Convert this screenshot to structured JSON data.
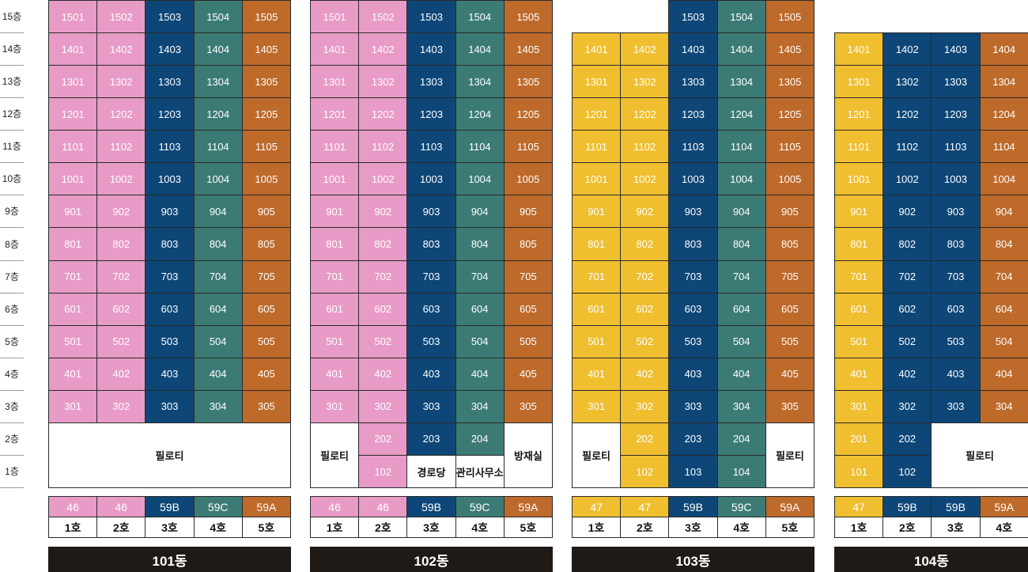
{
  "floors": [
    "15층",
    "14층",
    "13층",
    "12층",
    "11층",
    "10층",
    "9층",
    "8층",
    "7층",
    "6층",
    "5층",
    "4층",
    "3층",
    "2층",
    "1층"
  ],
  "colors": {
    "pink": "#e89bc6",
    "blue": "#0d4677",
    "teal": "#3c7b75",
    "orange": "#bd6a2b",
    "yellow": "#efbf2f",
    "dark": "#201a17"
  },
  "buildings": [
    {
      "name": "101동",
      "columns": [
        "pink",
        "pink",
        "blue",
        "teal",
        "orange"
      ],
      "top_floor": [
        15,
        15,
        15,
        15,
        15
      ],
      "ground": [
        {
          "type": "piloti",
          "label": "필로티",
          "col": 0,
          "span": 5,
          "floors": [
            2,
            1
          ]
        }
      ],
      "types": [
        "46",
        "46",
        "59B",
        "59C",
        "59A"
      ],
      "hos": [
        "1호",
        "2호",
        "3호",
        "4호",
        "5호"
      ]
    },
    {
      "name": "102동",
      "columns": [
        "pink",
        "pink",
        "blue",
        "teal",
        "orange"
      ],
      "top_floor": [
        15,
        15,
        15,
        15,
        15
      ],
      "ground": [
        {
          "type": "piloti",
          "label": "필로티",
          "col": 0,
          "span": 1,
          "floors": [
            2,
            1
          ]
        },
        {
          "type": "unit",
          "label": "202",
          "col": 1,
          "floor": 2
        },
        {
          "type": "unit",
          "label": "102",
          "col": 1,
          "floor": 1
        },
        {
          "type": "unit",
          "label": "203",
          "col": 2,
          "floor": 2
        },
        {
          "type": "facility",
          "label": "경로당",
          "col": 2,
          "floor": 1
        },
        {
          "type": "unit",
          "label": "204",
          "col": 3,
          "floor": 2
        },
        {
          "type": "facility",
          "label": "관리사무소",
          "col": 3,
          "floor": 1
        },
        {
          "type": "piloti",
          "label": "방재실",
          "col": 4,
          "span": 1,
          "floors": [
            2,
            1
          ]
        }
      ],
      "types": [
        "46",
        "46",
        "59B",
        "59C",
        "59A"
      ],
      "hos": [
        "1호",
        "2호",
        "3호",
        "4호",
        "5호"
      ]
    },
    {
      "name": "103동",
      "columns": [
        "yellow",
        "yellow",
        "blue",
        "teal",
        "orange"
      ],
      "top_floor": [
        14,
        14,
        15,
        15,
        15
      ],
      "ground": [
        {
          "type": "piloti",
          "label": "필로티",
          "col": 0,
          "span": 1,
          "floors": [
            2,
            1
          ]
        },
        {
          "type": "unit",
          "label": "202",
          "col": 1,
          "floor": 2
        },
        {
          "type": "unit",
          "label": "102",
          "col": 1,
          "floor": 1
        },
        {
          "type": "unit",
          "label": "203",
          "col": 2,
          "floor": 2
        },
        {
          "type": "unit",
          "label": "103",
          "col": 2,
          "floor": 1
        },
        {
          "type": "unit",
          "label": "204",
          "col": 3,
          "floor": 2
        },
        {
          "type": "unit",
          "label": "104",
          "col": 3,
          "floor": 1
        },
        {
          "type": "piloti",
          "label": "필로티",
          "col": 4,
          "span": 1,
          "floors": [
            2,
            1
          ]
        }
      ],
      "types": [
        "47",
        "47",
        "59B",
        "59C",
        "59A"
      ],
      "hos": [
        "1호",
        "2호",
        "3호",
        "4호",
        "5호"
      ]
    },
    {
      "name": "104동",
      "columns": [
        "yellow",
        "blue",
        "blue",
        "orange"
      ],
      "top_floor": [
        14,
        14,
        14,
        14
      ],
      "ground": [
        {
          "type": "unit",
          "label": "201",
          "col": 0,
          "floor": 2
        },
        {
          "type": "unit",
          "label": "101",
          "col": 0,
          "floor": 1
        },
        {
          "type": "unit",
          "label": "202",
          "col": 1,
          "floor": 2
        },
        {
          "type": "unit",
          "label": "102",
          "col": 1,
          "floor": 1
        },
        {
          "type": "piloti",
          "label": "필로티",
          "col": 2,
          "span": 2,
          "floors": [
            2,
            1
          ]
        }
      ],
      "types": [
        "47",
        "59B",
        "59B",
        "59A"
      ],
      "hos": [
        "1호",
        "2호",
        "3호",
        "4호"
      ]
    }
  ]
}
